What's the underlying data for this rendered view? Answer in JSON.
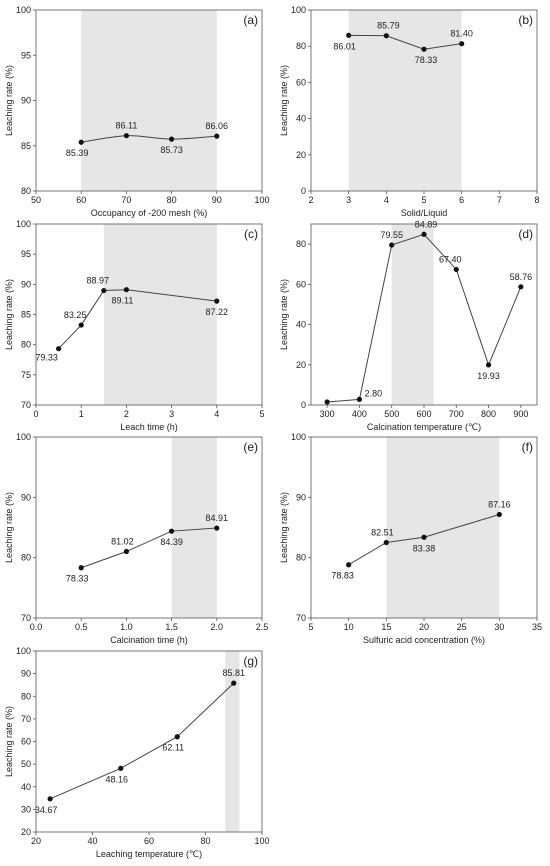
{
  "chart_data": [
    {
      "type": "line",
      "panel_label": "(a)",
      "xlabel": "Occupancy of -200 mesh (%)",
      "ylabel": "Leaching rate (%)",
      "xlim": [
        50,
        100
      ],
      "ylim": [
        80,
        100
      ],
      "xticks": [
        50,
        60,
        70,
        80,
        90,
        100
      ],
      "yticks": [
        80,
        85,
        90,
        95,
        100
      ],
      "highlight": [
        60,
        90
      ],
      "smooth": true,
      "x": [
        60,
        70,
        80,
        90
      ],
      "y": [
        85.39,
        86.11,
        85.73,
        86.06
      ],
      "labels": [
        "85.39",
        "86.11",
        "85.73",
        "86.06"
      ]
    },
    {
      "type": "line",
      "panel_label": "(b)",
      "xlabel": "Solid/Liquid",
      "ylabel": "Leaching rate (%)",
      "xlim": [
        2,
        8
      ],
      "ylim": [
        0,
        100
      ],
      "xticks": [
        2,
        3,
        4,
        5,
        6,
        7,
        8
      ],
      "yticks": [
        0,
        20,
        40,
        60,
        80,
        100
      ],
      "highlight": [
        3,
        6
      ],
      "smooth": false,
      "x": [
        3,
        4,
        5,
        6
      ],
      "y": [
        86.01,
        85.79,
        78.33,
        81.4
      ],
      "labels": [
        "86.01",
        "85.79",
        "78.33",
        "81.40"
      ]
    },
    {
      "type": "line",
      "panel_label": "(c)",
      "xlabel": "Leach time (h)",
      "ylabel": "Leaching rate (%)",
      "xlim": [
        0,
        5
      ],
      "ylim": [
        70,
        100
      ],
      "xticks": [
        0,
        1,
        2,
        3,
        4,
        5
      ],
      "yticks": [
        70,
        75,
        80,
        85,
        90,
        95,
        100
      ],
      "highlight": [
        1.5,
        4
      ],
      "smooth": false,
      "x": [
        0.5,
        1,
        1.5,
        2,
        4
      ],
      "y": [
        79.33,
        83.25,
        88.97,
        89.11,
        87.22
      ],
      "labels": [
        "79.33",
        "83.25",
        "88.97",
        "89.11",
        "87.22"
      ]
    },
    {
      "type": "line",
      "panel_label": "(d)",
      "xlabel": "Calcination temperature (℃)",
      "ylabel": "Leaching rate (%)",
      "xlim": [
        250,
        950
      ],
      "ylim": [
        0,
        90
      ],
      "xticks": [
        300,
        400,
        500,
        600,
        700,
        800,
        900
      ],
      "yticks": [
        0,
        20,
        40,
        60,
        80
      ],
      "highlight": [
        500,
        630
      ],
      "smooth": false,
      "x": [
        300,
        400,
        500,
        600,
        700,
        800,
        900
      ],
      "y": [
        1.5,
        2.8,
        79.55,
        84.89,
        67.4,
        19.93,
        58.76
      ],
      "labels": [
        "",
        "2.80",
        "79.55",
        "84.89",
        "67.40",
        "19.93",
        "58.76"
      ]
    },
    {
      "type": "line",
      "panel_label": "(e)",
      "xlabel": "Calcination time (h)",
      "ylabel": "Leaching rate (%)",
      "xlim": [
        0,
        2.5
      ],
      "ylim": [
        70,
        100
      ],
      "xticks": [
        0.0,
        0.5,
        1.0,
        1.5,
        2.0,
        2.5
      ],
      "yticks": [
        70,
        80,
        90,
        100
      ],
      "highlight": [
        1.5,
        2
      ],
      "smooth": false,
      "x": [
        0.5,
        1.0,
        1.5,
        2.0
      ],
      "y": [
        78.33,
        81.02,
        84.39,
        84.91
      ],
      "labels": [
        "78.33",
        "81.02",
        "84.39",
        "84.91"
      ]
    },
    {
      "type": "line",
      "panel_label": "(f)",
      "xlabel": "Sulfuric acid concentration (%)",
      "ylabel": "Leaching rate (%)",
      "xlim": [
        5,
        35
      ],
      "ylim": [
        70,
        100
      ],
      "xticks": [
        5,
        10,
        15,
        20,
        25,
        30,
        35
      ],
      "yticks": [
        70,
        80,
        90,
        100
      ],
      "highlight": [
        15,
        30
      ],
      "smooth": false,
      "x": [
        10,
        15,
        20,
        30
      ],
      "y": [
        78.83,
        82.51,
        83.38,
        87.16
      ],
      "labels": [
        "78.83",
        "82.51",
        "83.38",
        "87.16"
      ]
    },
    {
      "type": "line",
      "panel_label": "(g)",
      "xlabel": "Leaching temperature (℃)",
      "ylabel": "Leaching rate (%)",
      "xlim": [
        20,
        100
      ],
      "ylim": [
        20,
        100
      ],
      "xticks": [
        20,
        40,
        60,
        80,
        100
      ],
      "yticks": [
        20,
        30,
        40,
        50,
        60,
        70,
        80,
        90,
        100
      ],
      "highlight": [
        87,
        92
      ],
      "smooth": false,
      "x": [
        25,
        50,
        70,
        90
      ],
      "y": [
        34.67,
        48.16,
        62.11,
        85.81
      ],
      "labels": [
        "34.67",
        "48.16",
        "62.11",
        "85.81"
      ]
    }
  ]
}
